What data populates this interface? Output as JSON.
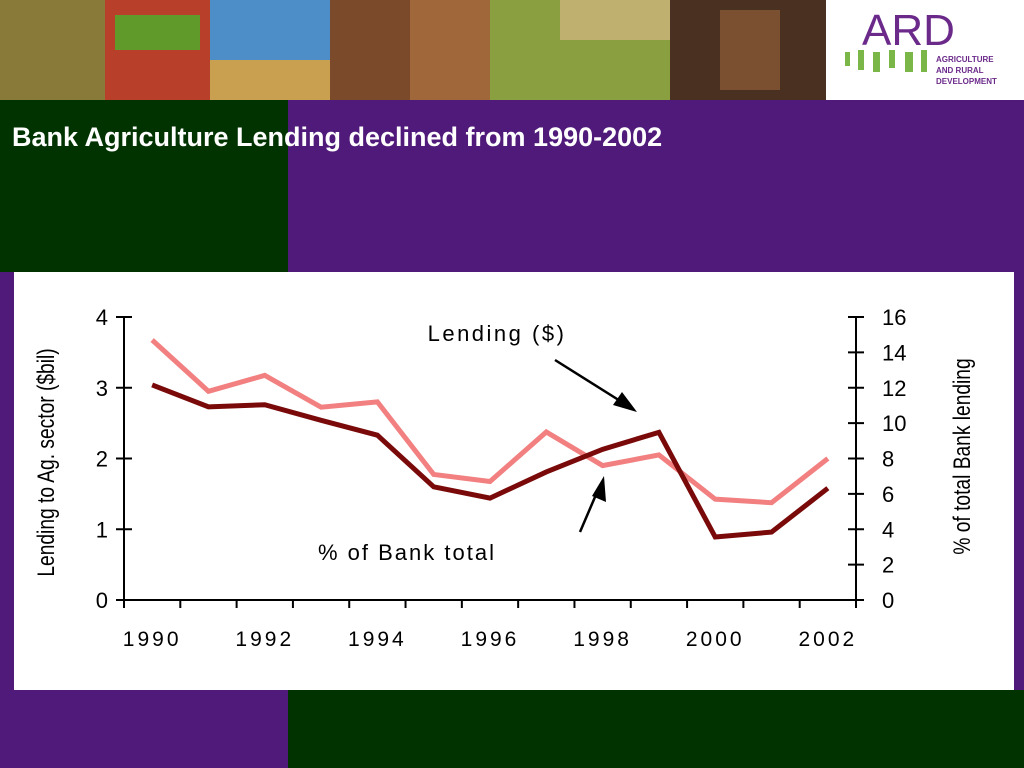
{
  "logo": {
    "name": "ARD",
    "lines": [
      "AGRICULTURE",
      "AND RURAL",
      "DEVELOPMENT"
    ]
  },
  "chart_data": {
    "type": "line",
    "title": "Bank Agriculture Lending declined from 1990-2002",
    "categories": [
      "1990",
      null,
      "1992",
      null,
      "1994",
      null,
      "1996",
      null,
      "1998",
      null,
      "2000",
      null,
      "2002"
    ],
    "y_label": "Lending to Ag. sector ($bil)",
    "y2_label": "% of total Bank lending",
    "ylim": [
      0,
      4
    ],
    "yticks": [
      0,
      1,
      2,
      3,
      4
    ],
    "y2lim": [
      0,
      16
    ],
    "y2ticks": [
      0,
      2,
      4,
      6,
      8,
      10,
      12,
      14,
      16
    ],
    "grid": false,
    "annotations": [
      "Lending ($)",
      "% of Bank total"
    ],
    "series": [
      {
        "name": "Lending ($)",
        "color": "#7a0a0a",
        "values": [
          3.04,
          2.73,
          2.76,
          2.54,
          2.33,
          1.6,
          1.44,
          1.81,
          2.13,
          2.37,
          0.89,
          0.96,
          1.58
        ]
      },
      {
        "name": "% of Bank total",
        "color": "#f28080",
        "axis": "y2",
        "values": [
          14.7,
          11.8,
          12.7,
          10.9,
          11.2,
          7.1,
          6.7,
          9.5,
          7.6,
          8.2,
          5.7,
          5.5,
          8.0
        ]
      }
    ]
  }
}
